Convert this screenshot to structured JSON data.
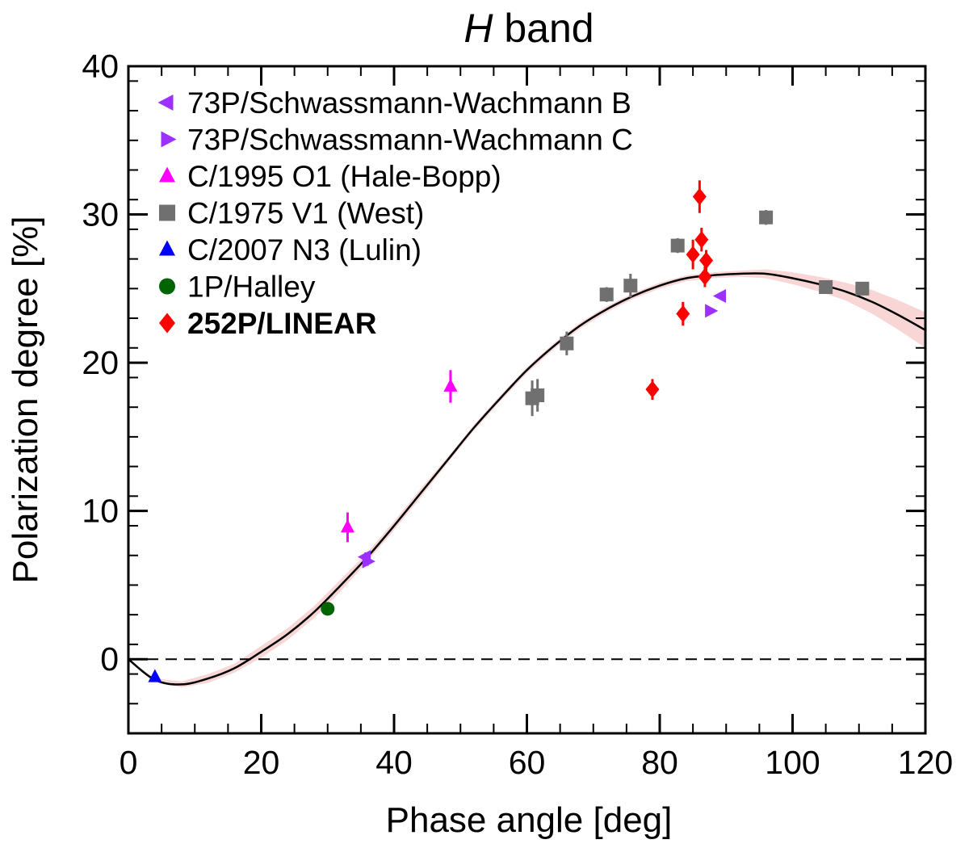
{
  "chart_data": {
    "type": "scatter",
    "title_italic": "H",
    "title_rest": " band",
    "xlabel": "Phase angle [deg]",
    "ylabel": "Polarization degree [%]",
    "xlim": [
      0,
      120
    ],
    "ylim": [
      -5,
      40
    ],
    "xticks": [
      0,
      20,
      40,
      60,
      80,
      100,
      120
    ],
    "yticks": [
      0,
      10,
      20,
      30,
      40
    ],
    "zero_line": "dashed",
    "legend_position": "top-left",
    "fit_curve": {
      "color": "#000000",
      "band_color": "#f9d6d6",
      "x": [
        0,
        4,
        8,
        12,
        16,
        20,
        24,
        28,
        32,
        36,
        40,
        44,
        48,
        52,
        56,
        60,
        64,
        68,
        72,
        76,
        80,
        84,
        88,
        92,
        96,
        100,
        104,
        108,
        112,
        116,
        120
      ],
      "y": [
        0,
        -1.4,
        -1.7,
        -1.3,
        -0.6,
        0.5,
        1.7,
        3.2,
        5.0,
        6.9,
        9.0,
        11.2,
        13.4,
        15.6,
        17.6,
        19.5,
        21.1,
        22.5,
        23.6,
        24.5,
        25.2,
        25.7,
        25.9,
        26.0,
        26.0,
        25.7,
        25.3,
        24.8,
        24.1,
        23.2,
        22.2
      ],
      "band_half_width": [
        0,
        0.1,
        0.2,
        0.3,
        0.3,
        0.4,
        0.4,
        0.4,
        0.4,
        0.3,
        0.3,
        0.3,
        0.2,
        0.2,
        0.2,
        0.2,
        0.2,
        0.2,
        0.2,
        0.2,
        0.2,
        0.2,
        0.2,
        0.2,
        0.3,
        0.4,
        0.5,
        0.6,
        0.8,
        1.0,
        1.2
      ]
    },
    "series": [
      {
        "name": "73P/Schwassmann-Wachmann B",
        "marker": "triangle-left",
        "color": "#9b30ff",
        "bold": false,
        "points": [
          {
            "x": 35.7,
            "y": 6.9,
            "err": 0.3
          },
          {
            "x": 89.2,
            "y": 24.5,
            "err": 0.2
          }
        ]
      },
      {
        "name": "73P/Schwassmann-Wachmann C",
        "marker": "triangle-right",
        "color": "#9b30ff",
        "bold": false,
        "points": [
          {
            "x": 36.0,
            "y": 6.6,
            "err": 0.3
          },
          {
            "x": 87.6,
            "y": 23.5,
            "err": 0.2
          }
        ]
      },
      {
        "name": "C/1995 O1 (Hale-Bopp)",
        "marker": "triangle-up",
        "color": "#ff00ff",
        "bold": false,
        "points": [
          {
            "x": 33.0,
            "y": 8.9,
            "err": 1.0
          },
          {
            "x": 48.5,
            "y": 18.4,
            "err": 1.1
          }
        ]
      },
      {
        "name": "C/1975 V1 (West)",
        "marker": "square",
        "color": "#707070",
        "bold": false,
        "points": [
          {
            "x": 60.8,
            "y": 17.6,
            "err": 1.2
          },
          {
            "x": 61.6,
            "y": 17.8,
            "err": 1.1
          },
          {
            "x": 66.0,
            "y": 21.3,
            "err": 0.8
          },
          {
            "x": 72.0,
            "y": 24.6,
            "err": 0.5
          },
          {
            "x": 75.6,
            "y": 25.2,
            "err": 0.8
          },
          {
            "x": 82.7,
            "y": 27.9,
            "err": 0.5
          },
          {
            "x": 96.0,
            "y": 29.8,
            "err": 0.5
          },
          {
            "x": 105.0,
            "y": 25.1,
            "err": 0.4
          },
          {
            "x": 110.5,
            "y": 25.0,
            "err": 0.4
          }
        ]
      },
      {
        "name": "C/2007 N3 (Lulin)",
        "marker": "triangle-up",
        "color": "#0000ff",
        "bold": false,
        "points": [
          {
            "x": 4.0,
            "y": -1.2,
            "err": 0.1
          }
        ]
      },
      {
        "name": "1P/Halley",
        "marker": "circle",
        "color": "#006400",
        "bold": false,
        "points": [
          {
            "x": 30.0,
            "y": 3.4,
            "err": 0.1
          }
        ]
      },
      {
        "name": "252P/LINEAR",
        "marker": "diamond",
        "color": "#ff0000",
        "bold": true,
        "points": [
          {
            "x": 78.9,
            "y": 18.2,
            "err": 0.7
          },
          {
            "x": 83.5,
            "y": 23.3,
            "err": 0.8
          },
          {
            "x": 85.0,
            "y": 27.3,
            "err": 1.0
          },
          {
            "x": 86.0,
            "y": 31.2,
            "err": 1.1
          },
          {
            "x": 86.3,
            "y": 28.3,
            "err": 0.8
          },
          {
            "x": 86.8,
            "y": 25.8,
            "err": 0.7
          },
          {
            "x": 87.0,
            "y": 26.9,
            "err": 0.7
          }
        ]
      }
    ]
  }
}
